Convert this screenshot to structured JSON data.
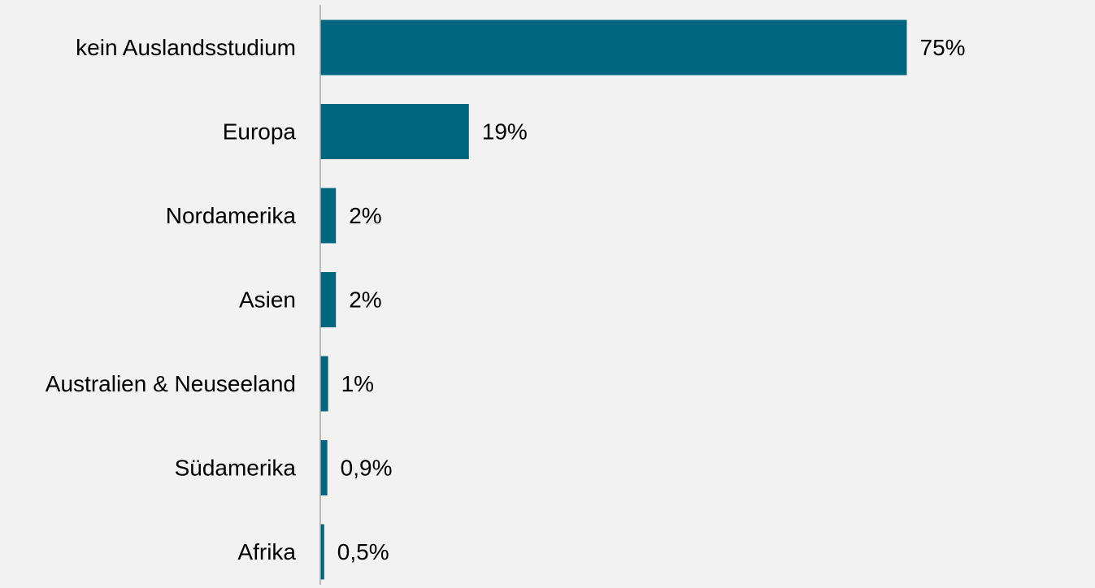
{
  "chart_data": {
    "type": "bar",
    "orientation": "horizontal",
    "categories": [
      "kein Auslandsstudium",
      "Europa",
      "Nordamerika",
      "Asien",
      "Australien & Neuseeland",
      "Südamerika",
      "Afrika"
    ],
    "values": [
      75,
      19,
      2,
      2,
      1,
      0.9,
      0.5
    ],
    "value_labels": [
      "75%",
      "19%",
      "2%",
      "2%",
      "1%",
      "0,9%",
      "0,5%"
    ],
    "title": "",
    "xlabel": "",
    "ylabel": "",
    "xlim": [
      0,
      100
    ],
    "grid": false,
    "legend": "none",
    "colors": {
      "bar": "#006680",
      "background": "#f2f2f2",
      "axis": "#a6a6a6",
      "text": "#000000"
    }
  }
}
